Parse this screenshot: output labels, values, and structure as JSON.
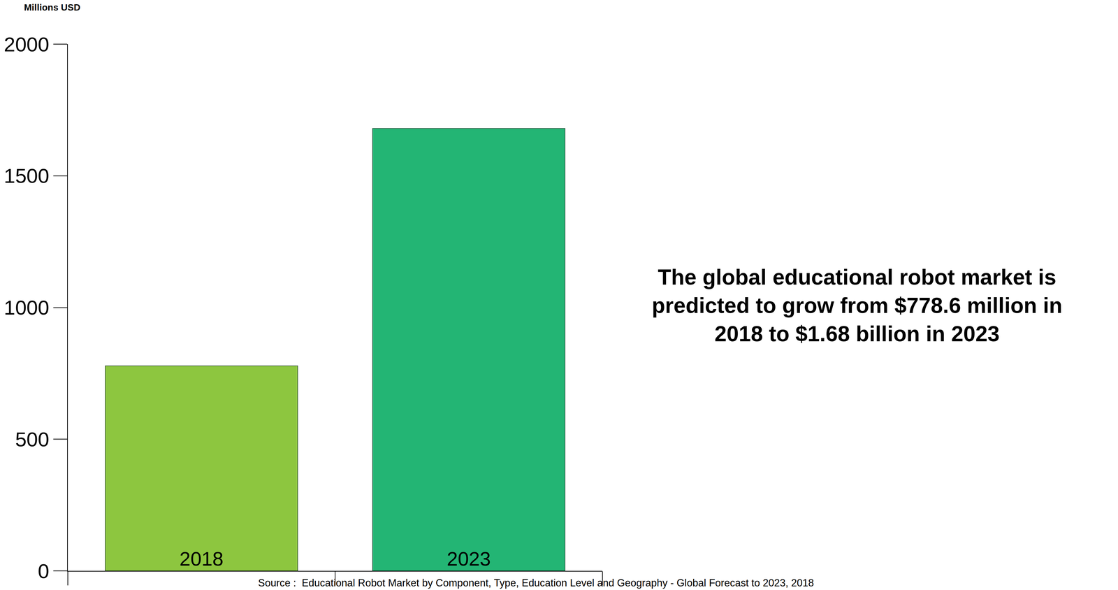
{
  "chart_data": {
    "type": "bar",
    "y_label": "Millions USD",
    "categories": [
      "2018",
      "2023"
    ],
    "values": [
      778.6,
      1680
    ],
    "colors": [
      "#8dc63f",
      "#23b574"
    ],
    "ylim": [
      0,
      2000
    ],
    "yticks": [
      0,
      500,
      1000,
      1500,
      2000
    ],
    "grid": false,
    "tick_labels": "y",
    "annotation": [
      "The global educational robot market is",
      "predicted to grow from $778.6 million in",
      "2018 to $1.68 billion in 2023"
    ],
    "source": "Source :  Educational Robot Market by Component, Type, Education Level and Geography - Global Forecast to 2023, 2018"
  }
}
